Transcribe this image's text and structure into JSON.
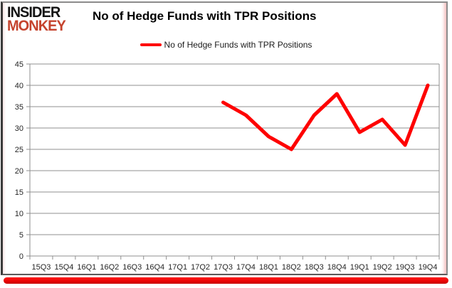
{
  "branding": {
    "logo_line1": "INSIDER",
    "logo_line2": "MONKEY",
    "logo_color_top": "#141414",
    "logo_color_bottom": "#c5432d"
  },
  "header": {
    "title": "No of Hedge Funds with TPR Positions"
  },
  "legend": {
    "label": "No of Hedge Funds with TPR Positions",
    "swatch_color": "#fe0000"
  },
  "chart_data": {
    "type": "line",
    "title": "No of Hedge Funds with TPR Positions",
    "categories": [
      "15Q3",
      "15Q4",
      "16Q1",
      "16Q2",
      "16Q3",
      "16Q4",
      "17Q1",
      "17Q2",
      "17Q3",
      "17Q4",
      "18Q1",
      "18Q2",
      "18Q3",
      "18Q4",
      "19Q1",
      "19Q2",
      "19Q3",
      "19Q4"
    ],
    "series": [
      {
        "name": "No of Hedge Funds with TPR Positions",
        "color": "#fe0000",
        "values": [
          null,
          null,
          null,
          null,
          null,
          null,
          null,
          null,
          36,
          33,
          28,
          25,
          33,
          38,
          29,
          32,
          26,
          40
        ]
      }
    ],
    "ylim": [
      0,
      45
    ],
    "yticks": [
      0,
      5,
      10,
      15,
      20,
      25,
      30,
      35,
      40,
      45
    ],
    "xlabel": "",
    "ylabel": "",
    "grid": true,
    "legend_position": "top",
    "gridline_color": "#8f8f8f",
    "axis_text_color": "#262626"
  },
  "decor": {
    "bottom_bar_color": "#ea0202"
  }
}
